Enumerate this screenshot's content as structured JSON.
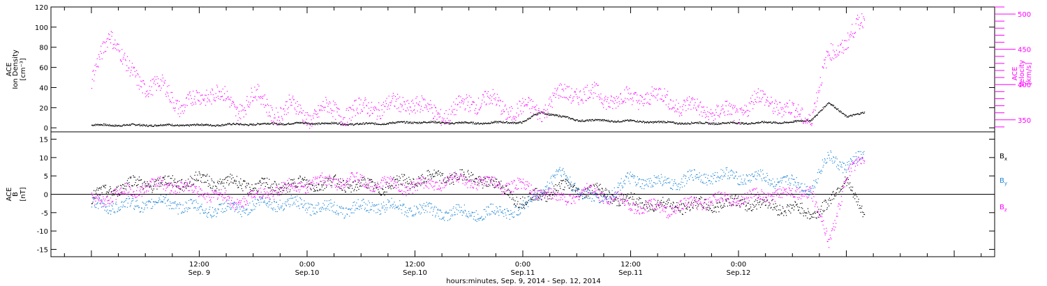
{
  "chart_data": [
    {
      "type": "scatter",
      "panel": "top",
      "ylabel_left": [
        "ACE",
        "Ion Density",
        "[cm⁻³]"
      ],
      "ylabel_right": [
        "ACE",
        "Velocity",
        "[km/s]"
      ],
      "yticks_left": [
        "0",
        "20",
        "40",
        "60",
        "80",
        "100",
        "120"
      ],
      "ylim_left": [
        -4,
        120
      ],
      "yticks_right": [
        "350",
        "400",
        "450",
        "500"
      ],
      "ylim_right": [
        333,
        510
      ],
      "grid": false,
      "series": [
        {
          "name": "",
          "axis": "left",
          "color": "#000000",
          "x_hours": [
            0,
            6,
            12,
            18,
            24,
            30,
            36,
            42,
            48,
            50,
            52,
            54,
            60,
            66,
            72,
            78,
            80,
            82,
            84,
            86
          ],
          "values": [
            3,
            3,
            3,
            4,
            5,
            4,
            6,
            5,
            6,
            16,
            12,
            8,
            7,
            5,
            5,
            6,
            8,
            25,
            12,
            15
          ]
        },
        {
          "name": "",
          "axis": "right",
          "color": "#ff00ff",
          "x_hours": [
            0,
            2,
            4,
            6,
            8,
            10,
            12,
            14,
            16,
            18,
            20,
            22,
            24,
            26,
            28,
            30,
            32,
            34,
            36,
            38,
            40,
            42,
            44,
            46,
            48,
            50,
            52,
            54,
            56,
            58,
            60,
            62,
            64,
            66,
            68,
            70,
            72,
            74,
            76,
            78,
            80,
            82,
            84,
            86
          ],
          "values": [
            400,
            480,
            420,
            400,
            395,
            370,
            380,
            395,
            360,
            390,
            360,
            370,
            355,
            365,
            360,
            365,
            370,
            370,
            375,
            360,
            360,
            375,
            380,
            365,
            365,
            365,
            385,
            390,
            385,
            380,
            380,
            385,
            380,
            370,
            365,
            360,
            360,
            380,
            375,
            360,
            355,
            440,
            465,
            490
          ]
        }
      ]
    },
    {
      "type": "scatter",
      "panel": "bottom",
      "ylabel_left": [
        "ACE",
        "B",
        "[nT]"
      ],
      "yticks_left": [
        "-15",
        "-10",
        "-5",
        "0",
        "5",
        "10",
        "15"
      ],
      "ylim_left": [
        -17,
        17
      ],
      "zero_line": true,
      "grid": false,
      "legend_position": "right",
      "series": [
        {
          "name": "Bx",
          "color": "#000000",
          "x_hours": [
            0,
            4,
            8,
            12,
            16,
            20,
            24,
            28,
            32,
            36,
            40,
            44,
            48,
            52,
            56,
            60,
            64,
            68,
            72,
            76,
            80,
            82,
            84,
            86
          ],
          "values": [
            -1,
            3,
            3,
            4,
            3,
            2,
            3,
            3,
            2,
            4,
            5,
            4,
            -2,
            2,
            1,
            -2,
            -3,
            -3,
            -2,
            -3,
            -5,
            -3,
            5,
            -7
          ]
        },
        {
          "name": "By",
          "color": "#1f86d6",
          "x_hours": [
            0,
            4,
            8,
            12,
            16,
            20,
            24,
            28,
            32,
            36,
            40,
            44,
            48,
            52,
            56,
            60,
            64,
            68,
            72,
            76,
            80,
            82,
            84,
            86
          ],
          "values": [
            -3,
            -3,
            -2,
            -4,
            -4,
            -2,
            -3,
            -4,
            -3,
            -4,
            -5,
            -5,
            -4,
            6,
            -2,
            4,
            3,
            5,
            5,
            4,
            2,
            10,
            8,
            10
          ]
        },
        {
          "name": "Bz",
          "color": "#ff00ff",
          "x_hours": [
            0,
            4,
            8,
            12,
            16,
            20,
            24,
            28,
            32,
            36,
            40,
            44,
            48,
            52,
            56,
            60,
            64,
            68,
            72,
            76,
            80,
            82,
            84,
            86
          ],
          "values": [
            -2,
            1,
            3,
            1,
            -2,
            1,
            3,
            4,
            3,
            2,
            4,
            3,
            2,
            -1,
            1,
            -3,
            -4,
            -2,
            -1,
            0,
            1,
            -13,
            5,
            10
          ]
        }
      ]
    }
  ],
  "x_axis": {
    "hours_range": [
      -4.5,
      100.5
    ],
    "ticks": [
      {
        "hours": 12,
        "time": "12:00",
        "date": "Sep. 9"
      },
      {
        "hours": 24,
        "time": "0:00",
        "date": "Sep.10"
      },
      {
        "hours": 36,
        "time": "12:00",
        "date": "Sep.10"
      },
      {
        "hours": 48,
        "time": "0:00",
        "date": "Sep.11"
      },
      {
        "hours": 60,
        "time": "12:00",
        "date": "Sep.11"
      },
      {
        "hours": 72,
        "time": "0:00",
        "date": "Sep.12"
      }
    ],
    "label": "hours:minutes, Sep.  9, 2014 - Sep. 12, 2014"
  },
  "legend": {
    "bx": "B",
    "bx_sub": "x",
    "by": "B",
    "by_sub": "y",
    "bz": "B",
    "bz_sub": "z"
  }
}
